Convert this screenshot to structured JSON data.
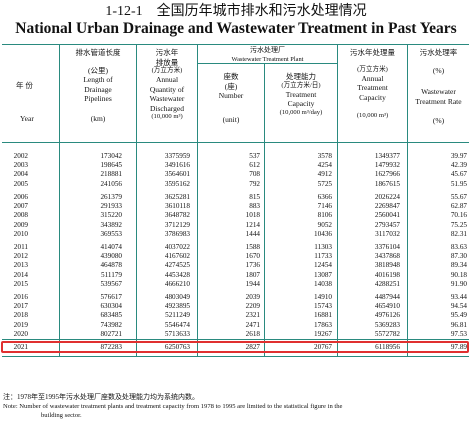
{
  "title": {
    "code_cn": "1-12-1　全国历年城市排水和污水处理情况",
    "en": "National Urban Drainage and Wastewater Treatment in Past Years"
  },
  "headers": {
    "year_cn": "年 份",
    "year_en": "Year",
    "pipelines": [
      "排水管道长度",
      "(公里)",
      "Length of",
      "Drainage",
      "Pipelines",
      "(km)"
    ],
    "discharged": [
      "污水年",
      "排放量",
      "(万立方米)",
      "Annual",
      "Quantity of",
      "Wastewater",
      "Discharged",
      "(10,000 m³)"
    ],
    "plant_group_cn": "污水处理厂",
    "plant_group_en": "Wastewater Treatment Plant",
    "plant_number": [
      "座数",
      "(座)",
      "Number",
      "(unit)"
    ],
    "plant_capacity": [
      "处理能力",
      "(万立方米/日)",
      "Treatment",
      "Capacity",
      "(10,000 m³/day)"
    ],
    "treatment_capacity": [
      "污水年处理量",
      "(万立方米)",
      "Annual",
      "Treatment",
      "Capacity",
      "(10,000 m³)"
    ],
    "treatment_rate": [
      "污水处理率",
      "(%)",
      "Wastewater",
      "Treatment Rate",
      "(%)"
    ]
  },
  "row_blocks": [
    [
      [
        "2002",
        "173042",
        "3375959",
        "537",
        "3578",
        "1349377",
        "39.97"
      ],
      [
        "2003",
        "198645",
        "3491616",
        "612",
        "4254",
        "1479932",
        "42.39"
      ],
      [
        "2004",
        "218881",
        "3564601",
        "708",
        "4912",
        "1627966",
        "45.67"
      ],
      [
        "2005",
        "241056",
        "3595162",
        "792",
        "5725",
        "1867615",
        "51.95"
      ]
    ],
    [
      [
        "2006",
        "261379",
        "3625281",
        "815",
        "6366",
        "2026224",
        "55.67"
      ],
      [
        "2007",
        "291933",
        "3610118",
        "883",
        "7146",
        "2269847",
        "62.87"
      ],
      [
        "2008",
        "315220",
        "3648782",
        "1018",
        "8106",
        "2560041",
        "70.16"
      ],
      [
        "2009",
        "343892",
        "3712129",
        "1214",
        "9052",
        "2793457",
        "75.25"
      ],
      [
        "2010",
        "369553",
        "3786983",
        "1444",
        "10436",
        "3117032",
        "82.31"
      ]
    ],
    [
      [
        "2011",
        "414074",
        "4037022",
        "1588",
        "11303",
        "3376104",
        "83.63"
      ],
      [
        "2012",
        "439080",
        "4167602",
        "1670",
        "11733",
        "3437868",
        "87.30"
      ],
      [
        "2013",
        "464878",
        "4274525",
        "1736",
        "12454",
        "3818948",
        "89.34"
      ],
      [
        "2014",
        "511179",
        "4453428",
        "1807",
        "13087",
        "4016198",
        "90.18"
      ],
      [
        "2015",
        "539567",
        "4666210",
        "1944",
        "14038",
        "4288251",
        "91.90"
      ]
    ],
    [
      [
        "2016",
        "576617",
        "4803049",
        "2039",
        "14910",
        "4487944",
        "93.44"
      ],
      [
        "2017",
        "630304",
        "4923895",
        "2209",
        "15743",
        "4654910",
        "94.54"
      ],
      [
        "2018",
        "683485",
        "5211249",
        "2321",
        "16881",
        "4976126",
        "95.49"
      ],
      [
        "2019",
        "743982",
        "5546474",
        "2471",
        "17863",
        "5369283",
        "96.81"
      ],
      [
        "2020",
        "802721",
        "5713633",
        "2618",
        "19267",
        "5572782",
        "97.53"
      ]
    ]
  ],
  "highlight_row": [
    "2021",
    "872283",
    "6250763",
    "2827",
    "20767",
    "6118956",
    "97.89"
  ],
  "notes": {
    "cn": "注：1978年至1995年污水处理厂座数及处理能力均为系统内数。",
    "en_1": "Note: Number of wastewater treatment plants and treatment capacity from 1978 to 1995 are limited to the statistical figure in the",
    "en_2": "building sector."
  },
  "colors": {
    "rule": "#2a8a7f",
    "highlight": "#e03030"
  }
}
